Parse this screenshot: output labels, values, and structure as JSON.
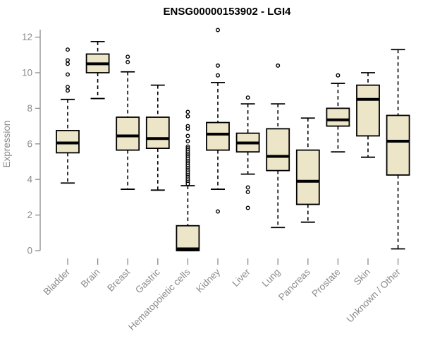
{
  "chart_data": {
    "type": "boxplot",
    "title": "ENSG00000153902 - LGI4",
    "xlabel": "",
    "ylabel": "Expression",
    "ylim": [
      0,
      12.5
    ],
    "yticks": [
      0,
      2,
      4,
      6,
      8,
      10,
      12
    ],
    "grid": false,
    "legend": "none",
    "categories": [
      "Bladder",
      "Brain",
      "Breast",
      "Gastric",
      "Hematopoietic cells",
      "Kidney",
      "Liver",
      "Lung",
      "Pancreas",
      "Prostate",
      "Skin",
      "Unknown / Other"
    ],
    "boxes": [
      {
        "category": "Bladder",
        "whisker_low": 3.8,
        "q1": 5.5,
        "median": 6.05,
        "q3": 6.75,
        "whisker_high": 8.5,
        "outliers": [
          11.3,
          10.7,
          10.5,
          9.9,
          9.2,
          9.0
        ]
      },
      {
        "category": "Brain",
        "whisker_low": 8.55,
        "q1": 10.0,
        "median": 10.5,
        "q3": 11.05,
        "whisker_high": 11.75,
        "outliers": []
      },
      {
        "category": "Breast",
        "whisker_low": 3.45,
        "q1": 5.65,
        "median": 6.45,
        "q3": 7.5,
        "whisker_high": 10.05,
        "outliers": [
          10.9,
          10.6
        ]
      },
      {
        "category": "Gastric",
        "whisker_low": 3.4,
        "q1": 5.75,
        "median": 6.3,
        "q3": 7.5,
        "whisker_high": 9.3,
        "outliers": []
      },
      {
        "category": "Hematopoietic cells",
        "whisker_low": 0.0,
        "q1": 0.0,
        "median": 0.1,
        "q3": 1.4,
        "whisker_high": 3.65,
        "outliers": [
          7.8,
          7.55,
          7.0,
          6.85,
          6.45,
          6.15,
          5.85,
          5.75,
          5.65,
          5.55,
          5.45,
          5.35,
          5.25,
          5.15,
          5.05,
          4.95,
          4.85,
          4.75,
          4.65,
          4.55,
          4.45,
          4.35,
          4.25,
          4.15,
          4.05,
          3.95,
          3.85,
          3.75
        ]
      },
      {
        "category": "Kidney",
        "whisker_low": 3.45,
        "q1": 5.65,
        "median": 6.55,
        "q3": 7.2,
        "whisker_high": 9.45,
        "outliers": [
          12.4,
          10.4,
          9.85,
          2.2
        ]
      },
      {
        "category": "Liver",
        "whisker_low": 4.3,
        "q1": 5.55,
        "median": 6.05,
        "q3": 6.6,
        "whisker_high": 8.25,
        "outliers": [
          8.6,
          3.55,
          3.3,
          2.4
        ]
      },
      {
        "category": "Lung",
        "whisker_low": 1.3,
        "q1": 4.5,
        "median": 5.3,
        "q3": 6.85,
        "whisker_high": 8.25,
        "outliers": [
          10.4
        ]
      },
      {
        "category": "Pancreas",
        "whisker_low": 1.6,
        "q1": 2.6,
        "median": 3.9,
        "q3": 5.65,
        "whisker_high": 7.45,
        "outliers": []
      },
      {
        "category": "Prostate",
        "whisker_low": 5.55,
        "q1": 7.0,
        "median": 7.35,
        "q3": 8.0,
        "whisker_high": 9.4,
        "outliers": [
          9.85
        ]
      },
      {
        "category": "Skin",
        "whisker_low": 5.25,
        "q1": 6.45,
        "median": 8.5,
        "q3": 9.3,
        "whisker_high": 10.0,
        "outliers": []
      },
      {
        "category": "Unknown / Other",
        "whisker_low": 0.1,
        "q1": 4.25,
        "median": 6.15,
        "q3": 7.6,
        "whisker_high": 11.3,
        "outliers": []
      }
    ],
    "colors": {
      "box_fill": "#EDE5C8",
      "box_stroke": "#000000",
      "median": "#000000",
      "whisker": "#000000",
      "outlier_stroke": "#000000",
      "axis": "#8b8b8b",
      "tick_label": "#8b8b8b",
      "title": "#000000",
      "background": "#ffffff"
    }
  }
}
